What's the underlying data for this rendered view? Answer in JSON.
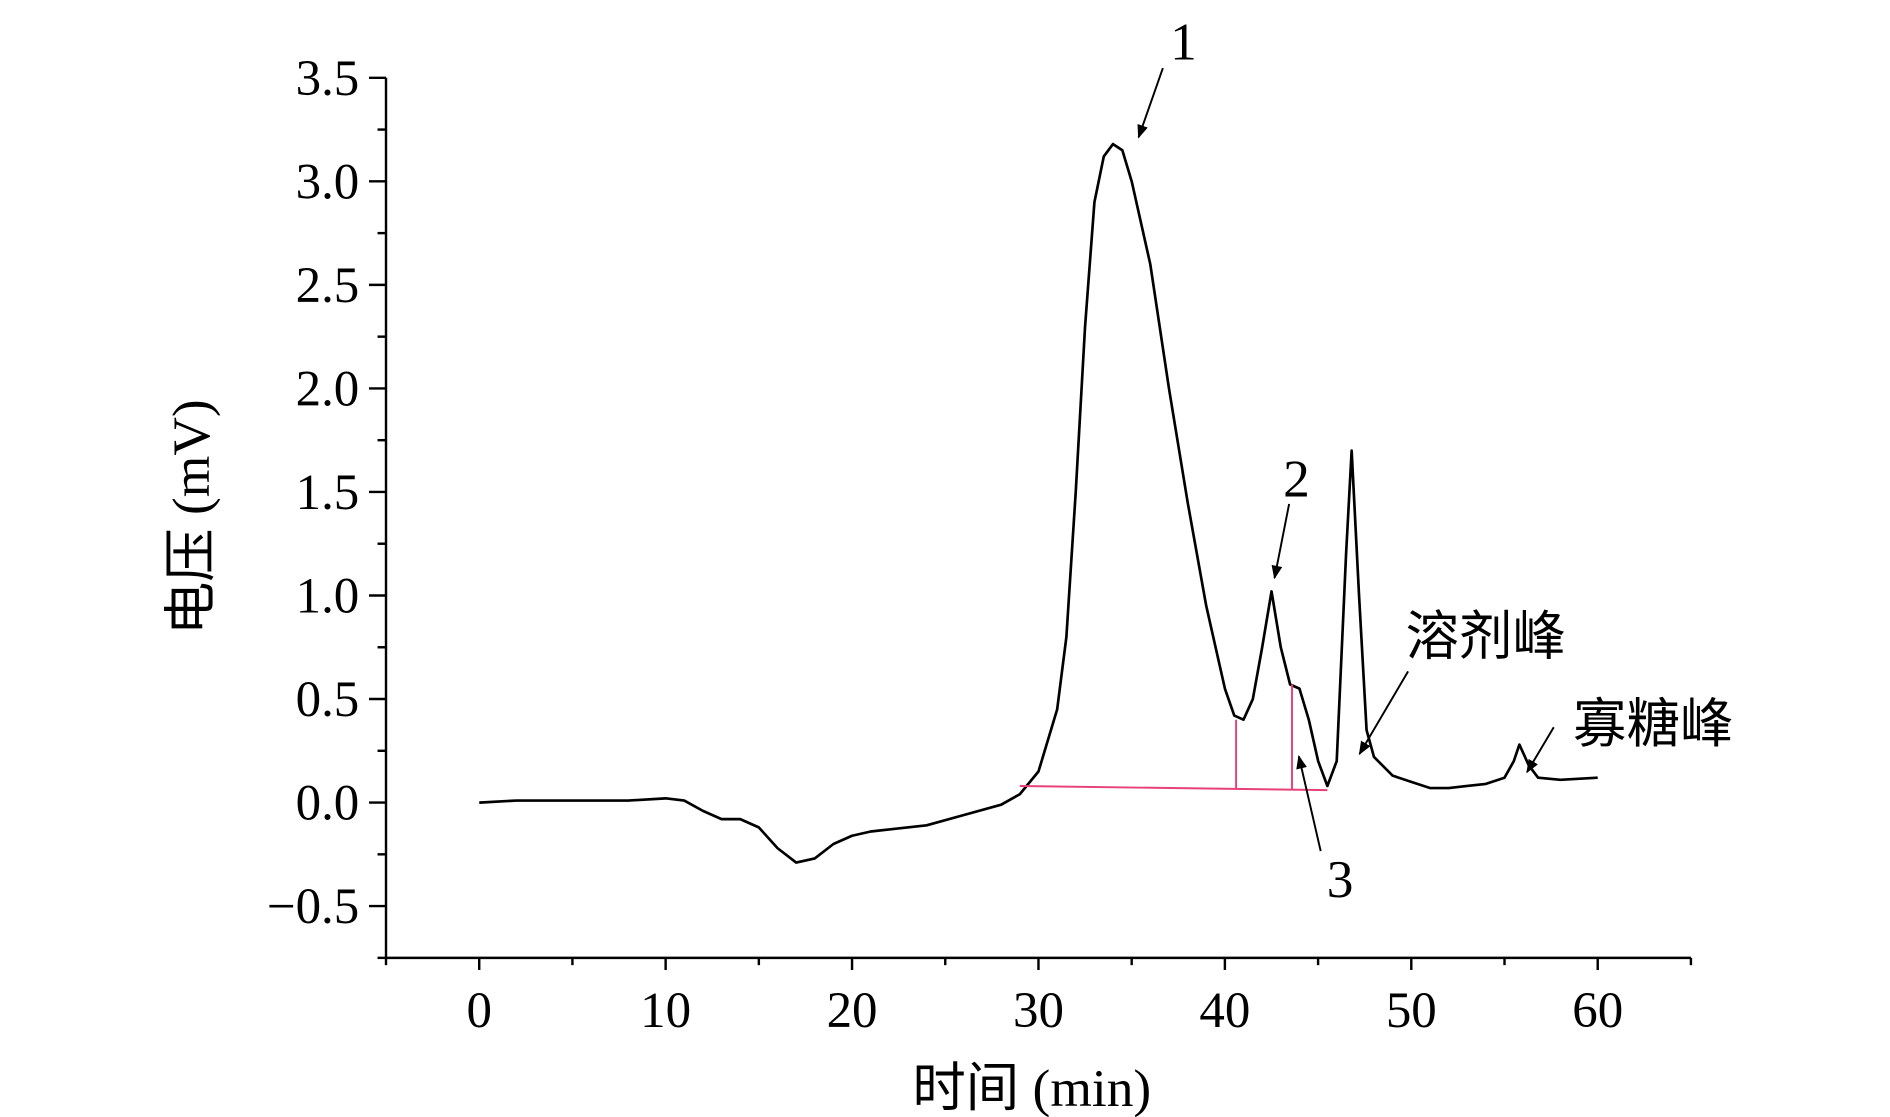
{
  "chart_data": {
    "type": "line",
    "x_label": "时间 (min)",
    "y_label": "电压 (mV)",
    "xlim": [
      -5,
      65
    ],
    "ylim": [
      -0.75,
      3.5
    ],
    "xticks": [
      0,
      10,
      20,
      30,
      40,
      50,
      60
    ],
    "xminorticks": [
      -5,
      5,
      15,
      25,
      35,
      45,
      55,
      65
    ],
    "yticks": [
      {
        "value": -0.5,
        "label": "−0.5"
      },
      {
        "value": 0,
        "label": "0.0"
      },
      0.5,
      {
        "value": 1,
        "label": "1.0"
      },
      1.5,
      {
        "value": 2,
        "label": "2.0"
      },
      2.5,
      {
        "value": 3,
        "label": "3.0"
      },
      3.5
    ],
    "yminorticks": [
      -0.75,
      -0.25,
      0.25,
      0.75,
      1.25,
      1.75,
      2.25,
      2.75,
      3.25
    ],
    "color": "#000000",
    "x": [
      0,
      2,
      4,
      6,
      8,
      10,
      11,
      12,
      13,
      14,
      15,
      16,
      17,
      18,
      19,
      20,
      21,
      22,
      24,
      26,
      28,
      29,
      30,
      31,
      31.5,
      32,
      32.5,
      33,
      33.5,
      34,
      34.5,
      35,
      36,
      37,
      38,
      39,
      40,
      40.5,
      41,
      41.5,
      42,
      42.5,
      43,
      43.5,
      44,
      44.5,
      45,
      45.5,
      46,
      46.5,
      46.8,
      47.2,
      47.6,
      48,
      49,
      50,
      51,
      52,
      53,
      54,
      55,
      55.5,
      55.8,
      56.3,
      56.8,
      58,
      60
    ],
    "values": [
      0.0,
      0.01,
      0.01,
      0.01,
      0.01,
      0.02,
      0.01,
      -0.04,
      -0.08,
      -0.08,
      -0.12,
      -0.22,
      -0.29,
      -0.27,
      -0.2,
      -0.16,
      -0.14,
      -0.13,
      -0.11,
      -0.06,
      -0.01,
      0.04,
      0.15,
      0.45,
      0.8,
      1.5,
      2.3,
      2.9,
      3.12,
      3.18,
      3.15,
      3.0,
      2.6,
      2.0,
      1.45,
      0.95,
      0.55,
      0.42,
      0.4,
      0.5,
      0.75,
      1.02,
      0.75,
      0.57,
      0.55,
      0.4,
      0.2,
      0.08,
      0.2,
      1.2,
      1.7,
      1.0,
      0.35,
      0.22,
      0.13,
      0.1,
      0.07,
      0.07,
      0.08,
      0.09,
      0.12,
      0.2,
      0.28,
      0.18,
      0.12,
      0.11,
      0.12
    ],
    "integration_color": "#e8417a",
    "integration_lines": [
      {
        "x": [
          29,
          45.5
        ],
        "y": [
          0.08,
          0.06
        ]
      },
      {
        "x": [
          40.6,
          40.6
        ],
        "y": [
          0.07,
          0.4
        ]
      },
      {
        "x": [
          43.6,
          43.6
        ],
        "y": [
          0.065,
          0.57
        ]
      }
    ],
    "annotations": [
      "1",
      "2",
      "3",
      "溶剂峰",
      "寡糖峰"
    ]
  }
}
